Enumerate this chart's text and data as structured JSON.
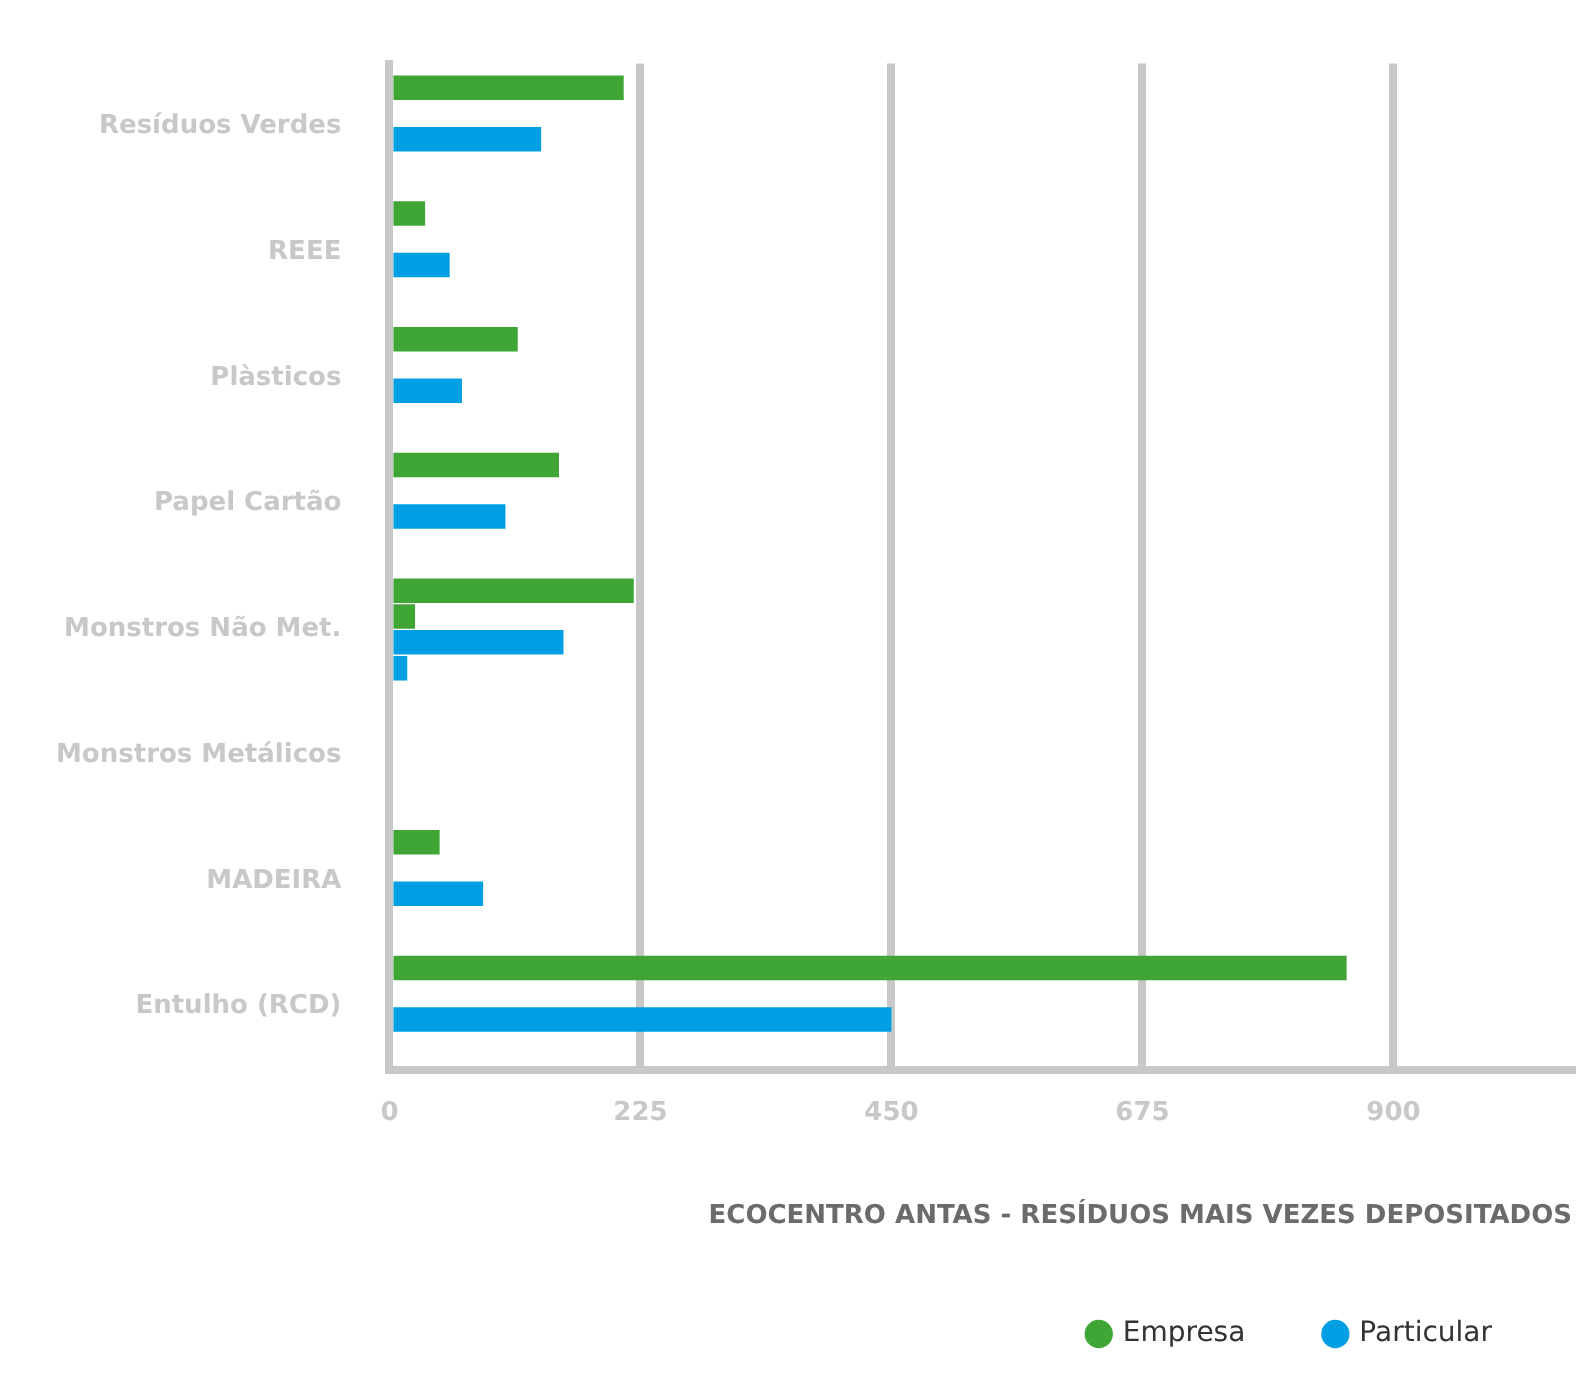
{
  "chart_data": {
    "type": "bar",
    "orientation": "horizontal",
    "xlabel": "ECOCENTRO ANTAS - RESÍDUOS MAIS VEZES DEPOSITADOS",
    "categories": [
      "Resíduos Verdes",
      "REEE",
      "Plàsticos",
      "Papel Cartão",
      "Monstros Não Met.",
      "Monstros Metálicos",
      "MADEIRA",
      "Entulho (RCD)"
    ],
    "series": [
      {
        "name": "Empresa",
        "color": "#3fa535",
        "values": [
          210,
          32,
          115,
          152,
          219,
          null,
          45,
          858
        ]
      },
      {
        "color": "#3fa535",
        "values": [
          null,
          null,
          null,
          null,
          23,
          null,
          null,
          null
        ]
      },
      {
        "name": "Particular",
        "color": "#009fe3",
        "values": [
          136,
          54,
          65,
          104,
          156,
          null,
          84,
          450
        ]
      },
      {
        "color": "#009fe3",
        "values": [
          null,
          null,
          null,
          null,
          16,
          null,
          null,
          null
        ]
      }
    ],
    "xlim": [
      0,
      1060
    ],
    "xticks": [
      0,
      225,
      450,
      675,
      900
    ],
    "grid": "x",
    "legend": "bottom right"
  }
}
